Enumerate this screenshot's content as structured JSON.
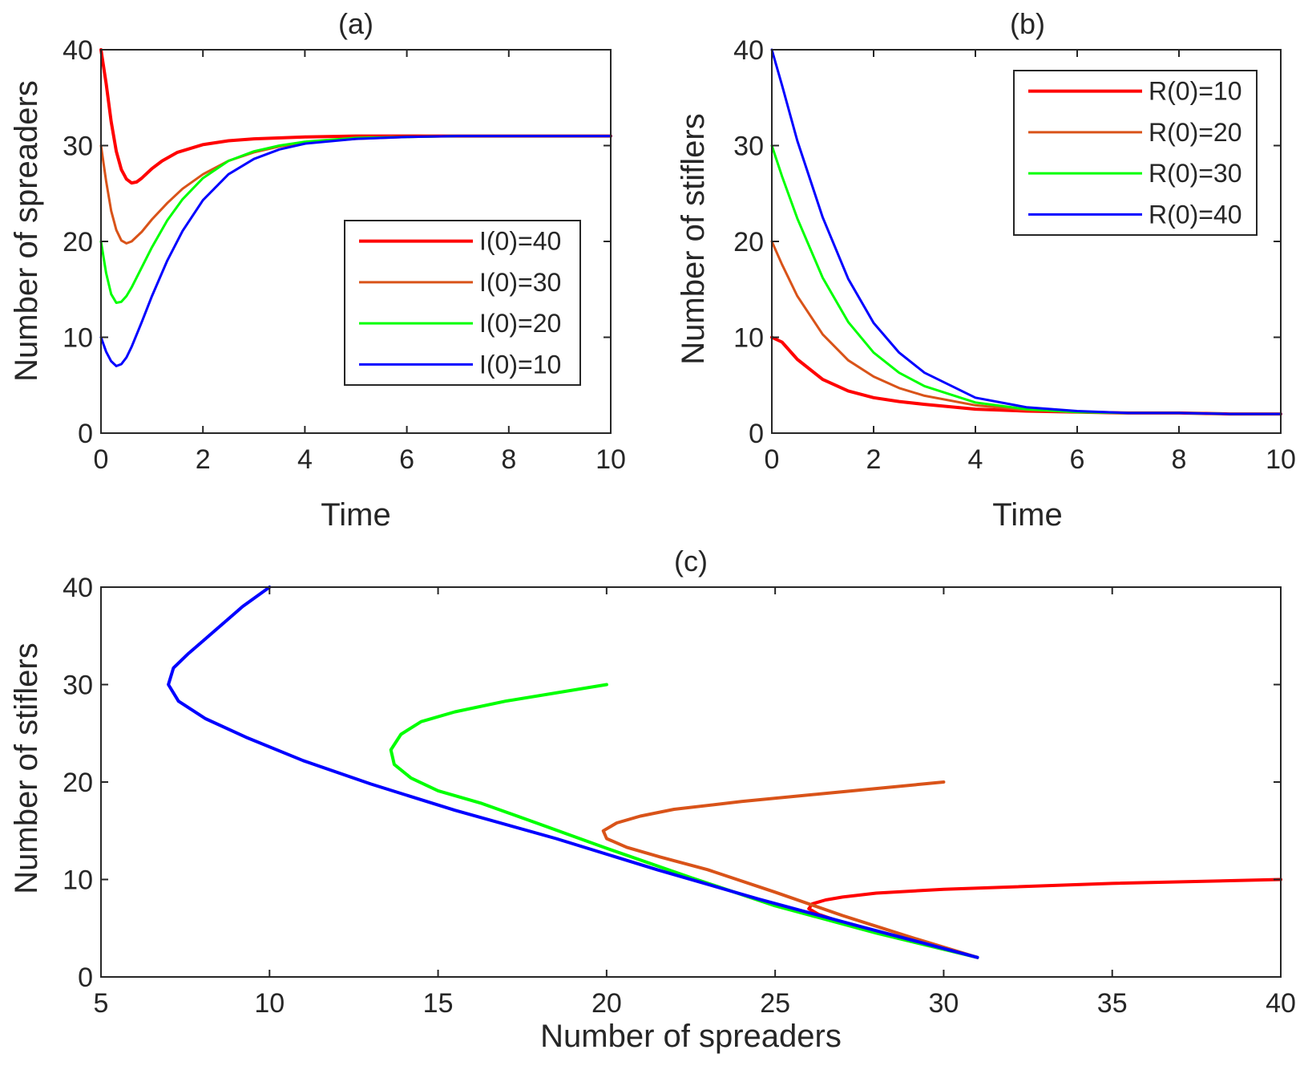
{
  "chart_data": [
    {
      "id": "a",
      "type": "line",
      "title": "(a)",
      "xlabel": "Time",
      "ylabel": "Number of spreaders",
      "xlim": [
        0,
        10
      ],
      "ylim": [
        0,
        40
      ],
      "xticks": [
        "0",
        "2",
        "4",
        "6",
        "8",
        "10"
      ],
      "yticks": [
        "0",
        "10",
        "20",
        "30",
        "40"
      ],
      "grid": false,
      "legend_position": "center-right",
      "series": [
        {
          "name": "I(0)=40",
          "color": "#ff0000",
          "x": [
            0,
            0.1,
            0.2,
            0.3,
            0.4,
            0.5,
            0.6,
            0.7,
            0.8,
            1.0,
            1.2,
            1.5,
            2.0,
            2.5,
            3.0,
            4.0,
            5.0,
            6.0,
            7.0,
            8.0,
            9.0,
            10.0
          ],
          "y": [
            40,
            36.5,
            32.5,
            29.4,
            27.5,
            26.5,
            26.1,
            26.2,
            26.6,
            27.6,
            28.4,
            29.3,
            30.1,
            30.5,
            30.7,
            30.9,
            31.0,
            31.0,
            31.0,
            31.0,
            31.0,
            31.0
          ]
        },
        {
          "name": "I(0)=30",
          "color": "#d95319",
          "x": [
            0,
            0.1,
            0.2,
            0.3,
            0.4,
            0.5,
            0.6,
            0.8,
            1.0,
            1.3,
            1.6,
            2.0,
            2.5,
            3.0,
            3.5,
            4.0,
            5.0,
            6.0,
            7.0,
            8.0,
            9.0,
            10.0
          ],
          "y": [
            30,
            26.3,
            23.2,
            21.2,
            20.1,
            19.8,
            20.0,
            21.0,
            22.3,
            24.0,
            25.5,
            27.0,
            28.4,
            29.3,
            29.9,
            30.3,
            30.7,
            30.9,
            31.0,
            31.0,
            31.0,
            31.0
          ]
        },
        {
          "name": "I(0)=20",
          "color": "#00ff00",
          "x": [
            0,
            0.1,
            0.2,
            0.3,
            0.4,
            0.5,
            0.6,
            0.8,
            1.0,
            1.3,
            1.6,
            2.0,
            2.5,
            3.0,
            3.5,
            4.0,
            5.0,
            6.0,
            7.0,
            8.0,
            9.0,
            10.0
          ],
          "y": [
            20,
            16.7,
            14.5,
            13.6,
            13.7,
            14.3,
            15.2,
            17.3,
            19.4,
            22.2,
            24.4,
            26.6,
            28.4,
            29.4,
            30.0,
            30.4,
            30.8,
            30.9,
            31.0,
            31.0,
            31.0,
            31.0
          ]
        },
        {
          "name": "I(0)=10",
          "color": "#0000ff",
          "x": [
            0,
            0.1,
            0.2,
            0.3,
            0.4,
            0.5,
            0.6,
            0.8,
            1.0,
            1.3,
            1.6,
            2.0,
            2.5,
            3.0,
            3.5,
            4.0,
            5.0,
            6.0,
            7.0,
            8.0,
            9.0,
            10.0
          ],
          "y": [
            10,
            8.5,
            7.5,
            7.0,
            7.2,
            7.9,
            9.0,
            11.6,
            14.3,
            18.0,
            21.1,
            24.3,
            27.0,
            28.6,
            29.6,
            30.2,
            30.7,
            30.9,
            31.0,
            31.0,
            31.0,
            31.0
          ]
        }
      ]
    },
    {
      "id": "b",
      "type": "line",
      "title": "(b)",
      "xlabel": "Time",
      "ylabel": "Number of stiflers",
      "xlim": [
        0,
        10
      ],
      "ylim": [
        0,
        40
      ],
      "xticks": [
        "0",
        "2",
        "4",
        "6",
        "8",
        "10"
      ],
      "yticks": [
        "0",
        "10",
        "20",
        "30",
        "40"
      ],
      "grid": false,
      "legend_position": "top-right",
      "series": [
        {
          "name": "R(0)=10",
          "color": "#ff0000",
          "x": [
            0,
            0.2,
            0.5,
            1.0,
            1.5,
            2.0,
            2.5,
            3.0,
            4.0,
            5.0,
            6.0,
            7.0,
            8.0,
            9.0,
            10.0
          ],
          "y": [
            10,
            9.5,
            7.7,
            5.6,
            4.4,
            3.7,
            3.3,
            3.0,
            2.5,
            2.3,
            2.2,
            2.1,
            2.1,
            2.0,
            2.0
          ]
        },
        {
          "name": "R(0)=20",
          "color": "#d95319",
          "x": [
            0,
            0.2,
            0.5,
            1.0,
            1.5,
            2.0,
            2.5,
            3.0,
            4.0,
            5.0,
            6.0,
            7.0,
            8.0,
            9.0,
            10.0
          ],
          "y": [
            20,
            17.6,
            14.3,
            10.3,
            7.6,
            5.9,
            4.7,
            3.9,
            2.9,
            2.4,
            2.2,
            2.1,
            2.1,
            2.0,
            2.0
          ]
        },
        {
          "name": "R(0)=30",
          "color": "#00ff00",
          "x": [
            0,
            0.2,
            0.5,
            1.0,
            1.5,
            2.0,
            2.5,
            3.0,
            4.0,
            5.0,
            6.0,
            7.0,
            8.0,
            9.0,
            10.0
          ],
          "y": [
            30,
            26.8,
            22.4,
            16.2,
            11.6,
            8.4,
            6.3,
            4.9,
            3.2,
            2.5,
            2.2,
            2.1,
            2.1,
            2.0,
            2.0
          ]
        },
        {
          "name": "R(0)=40",
          "color": "#0000ff",
          "x": [
            0,
            0.2,
            0.5,
            1.0,
            1.5,
            2.0,
            2.5,
            3.0,
            4.0,
            5.0,
            6.0,
            7.0,
            8.0,
            9.0,
            10.0
          ],
          "y": [
            40,
            36.3,
            30.5,
            22.5,
            16.1,
            11.5,
            8.4,
            6.3,
            3.7,
            2.7,
            2.3,
            2.1,
            2.1,
            2.0,
            2.0
          ]
        }
      ]
    },
    {
      "id": "c",
      "type": "line",
      "title": "(c)",
      "xlabel": "Number of spreaders",
      "ylabel": "Number of stiflers",
      "xlim": [
        5,
        40
      ],
      "ylim": [
        0,
        40
      ],
      "xticks": [
        "5",
        "10",
        "15",
        "20",
        "25",
        "30",
        "35",
        "40"
      ],
      "yticks": [
        "0",
        "10",
        "20",
        "30",
        "40"
      ],
      "grid": false,
      "series": [
        {
          "color": "#ff0000",
          "x": [
            40,
            35,
            30,
            28,
            27,
            26.5,
            26.1,
            26.0,
            26.3,
            27.0,
            28.0,
            29.0,
            30.0,
            31.0
          ],
          "y": [
            10,
            9.6,
            9.0,
            8.6,
            8.2,
            7.9,
            7.5,
            7.0,
            6.4,
            5.6,
            4.6,
            3.8,
            2.9,
            2.0
          ]
        },
        {
          "color": "#d95319",
          "x": [
            30,
            27,
            24,
            22,
            21,
            20.3,
            19.9,
            20.0,
            20.6,
            21.6,
            23.0,
            25.0,
            27.0,
            29.0,
            31.0
          ],
          "y": [
            20,
            19.0,
            18.0,
            17.2,
            16.5,
            15.8,
            15.0,
            14.2,
            13.3,
            12.3,
            11.0,
            8.7,
            6.3,
            4.1,
            2.0
          ]
        },
        {
          "color": "#00ff00",
          "x": [
            20,
            17,
            15.5,
            14.5,
            13.9,
            13.6,
            13.7,
            14.2,
            15.0,
            16.3,
            18.0,
            20.0,
            22.5,
            25.0,
            28.0,
            31.0
          ],
          "y": [
            30,
            28.3,
            27.2,
            26.2,
            24.9,
            23.3,
            21.8,
            20.4,
            19.1,
            17.8,
            15.7,
            13.2,
            10.2,
            7.3,
            4.5,
            2.0
          ]
        },
        {
          "color": "#0000ff",
          "x": [
            10,
            9.2,
            8.2,
            7.6,
            7.15,
            7.0,
            7.3,
            8.1,
            9.3,
            11.0,
            13.0,
            15.5,
            18.5,
            21.5,
            24.5,
            27.5,
            31.0
          ],
          "y": [
            40,
            38.0,
            35.0,
            33.2,
            31.7,
            30.0,
            28.3,
            26.5,
            24.6,
            22.2,
            19.8,
            17.1,
            14.2,
            11.0,
            8.0,
            5.2,
            2.0
          ]
        }
      ]
    }
  ]
}
